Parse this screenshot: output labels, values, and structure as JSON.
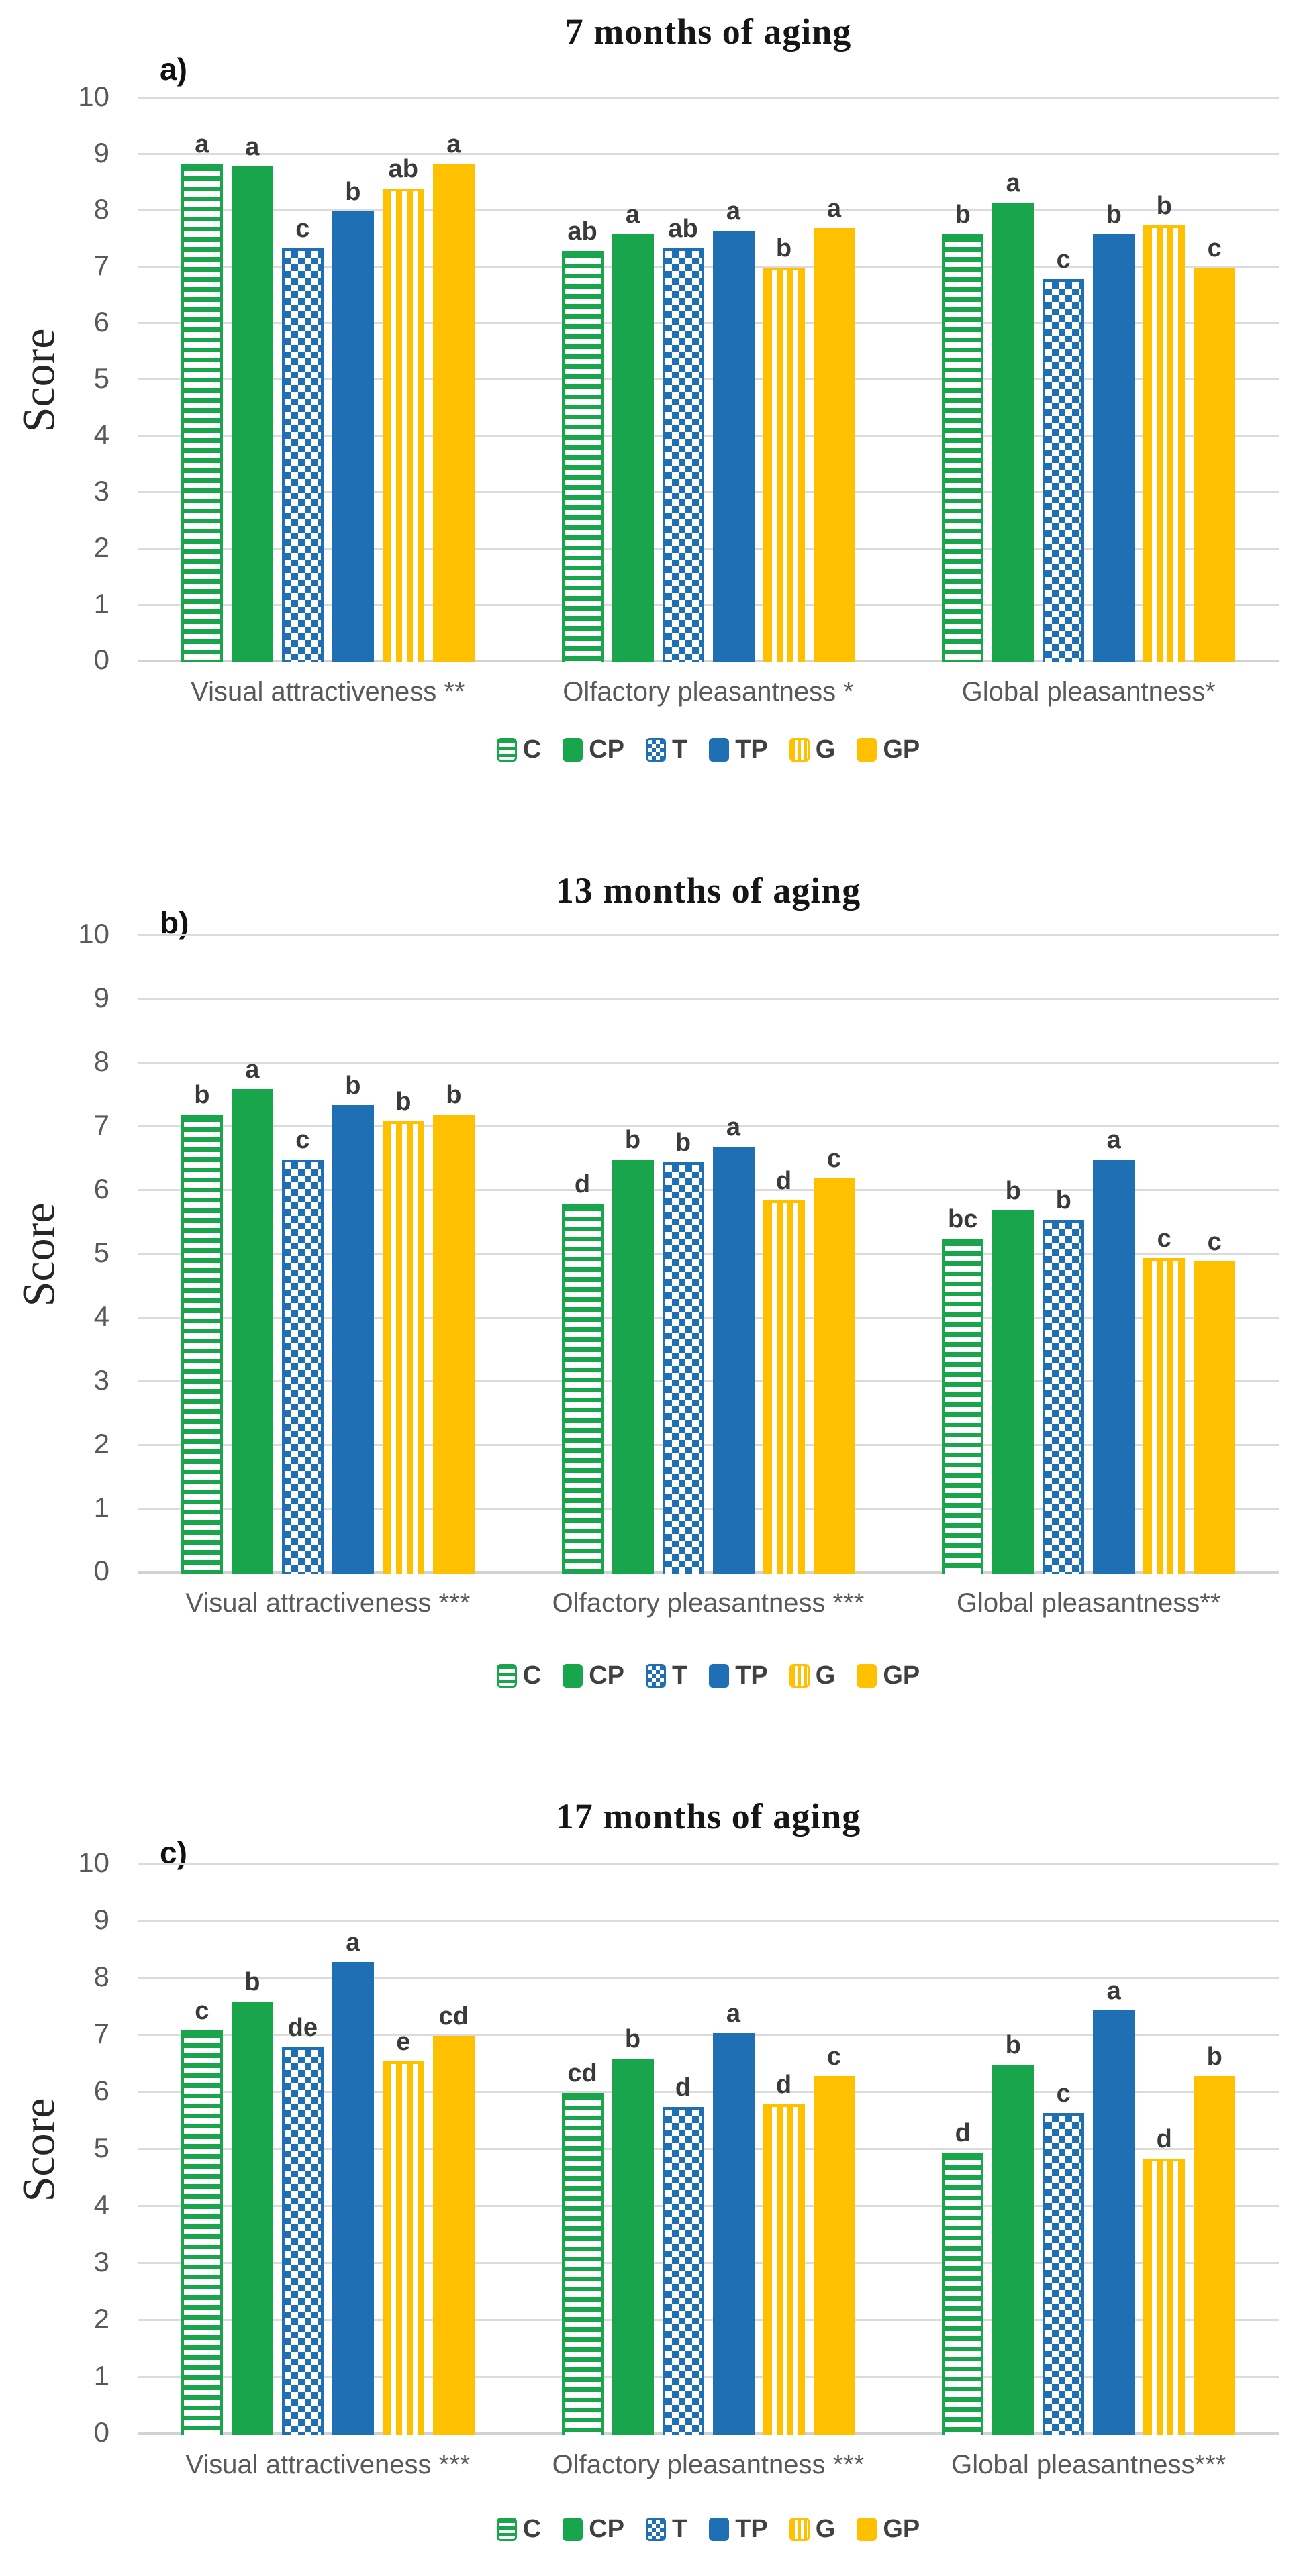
{
  "colors": {
    "green": "#18A54C",
    "blue": "#1F6FB5",
    "yellow": "#FFC000",
    "gridline": "#DBDBDB",
    "tick_text": "#595959",
    "letter_text": "#3A3A3A"
  },
  "y_axis": {
    "label": "Score",
    "ticks": [
      0,
      1,
      2,
      3,
      4,
      5,
      6,
      7,
      8,
      9,
      10
    ],
    "max": 10
  },
  "legend": {
    "items": [
      {
        "key": "C",
        "style": "green-hstripe"
      },
      {
        "key": "CP",
        "style": "green-solid"
      },
      {
        "key": "T",
        "style": "blue-check"
      },
      {
        "key": "TP",
        "style": "blue-solid"
      },
      {
        "key": "G",
        "style": "yellow-vstripe"
      },
      {
        "key": "GP",
        "style": "yellow-solid"
      }
    ]
  },
  "chart_data": [
    {
      "type": "bar",
      "panel": "a)",
      "title": "7 months of aging",
      "ylabel": "Score",
      "ylim": [
        0,
        10
      ],
      "grid": true,
      "legend_position": "bottom",
      "categories": [
        "Visual attractiveness **",
        "Olfactory pleasantness *",
        "Global pleasantness*"
      ],
      "series": [
        {
          "name": "C",
          "style": "green-hstripe",
          "values": [
            8.85,
            7.3,
            7.6
          ],
          "letters": [
            "a",
            "ab",
            "b"
          ]
        },
        {
          "name": "CP",
          "style": "green-solid",
          "values": [
            8.8,
            7.6,
            8.15
          ],
          "letters": [
            "a",
            "a",
            "a"
          ]
        },
        {
          "name": "T",
          "style": "blue-check",
          "values": [
            7.35,
            7.35,
            6.8
          ],
          "letters": [
            "c",
            "ab",
            "c"
          ]
        },
        {
          "name": "TP",
          "style": "blue-solid",
          "values": [
            8.0,
            7.65,
            7.6
          ],
          "letters": [
            "b",
            "a",
            "b"
          ]
        },
        {
          "name": "G",
          "style": "yellow-vstripe",
          "values": [
            8.4,
            7.0,
            7.75
          ],
          "letters": [
            "ab",
            "b",
            "b"
          ]
        },
        {
          "name": "GP",
          "style": "yellow-solid",
          "values": [
            8.85,
            7.7,
            7.0
          ],
          "letters": [
            "a",
            "a",
            "c"
          ]
        }
      ]
    },
    {
      "type": "bar",
      "panel": "b)",
      "title": "13 months of aging",
      "ylabel": "Score",
      "ylim": [
        0,
        10
      ],
      "grid": true,
      "legend_position": "bottom",
      "categories": [
        "Visual attractiveness ***",
        "Olfactory pleasantness ***",
        "Global pleasantness**"
      ],
      "series": [
        {
          "name": "C",
          "style": "green-hstripe",
          "values": [
            7.2,
            5.8,
            5.25
          ],
          "letters": [
            "b",
            "d",
            "bc"
          ]
        },
        {
          "name": "CP",
          "style": "green-solid",
          "values": [
            7.6,
            6.5,
            5.7
          ],
          "letters": [
            "a",
            "b",
            "b"
          ]
        },
        {
          "name": "T",
          "style": "blue-check",
          "values": [
            6.5,
            6.45,
            5.55
          ],
          "letters": [
            "c",
            "b",
            "b"
          ]
        },
        {
          "name": "TP",
          "style": "blue-solid",
          "values": [
            7.35,
            6.7,
            6.5
          ],
          "letters": [
            "b",
            "a",
            "a"
          ]
        },
        {
          "name": "G",
          "style": "yellow-vstripe",
          "values": [
            7.1,
            5.85,
            4.95
          ],
          "letters": [
            "b",
            "d",
            "c"
          ]
        },
        {
          "name": "GP",
          "style": "yellow-solid",
          "values": [
            7.2,
            6.2,
            4.9
          ],
          "letters": [
            "b",
            "c",
            "c"
          ]
        }
      ]
    },
    {
      "type": "bar",
      "panel": "c)",
      "title": "17 months of aging",
      "ylabel": "Score",
      "ylim": [
        0,
        10
      ],
      "grid": true,
      "legend_position": "bottom",
      "categories": [
        "Visual attractiveness ***",
        "Olfactory pleasantness ***",
        "Global pleasantness***"
      ],
      "series": [
        {
          "name": "C",
          "style": "green-hstripe",
          "values": [
            7.1,
            6.0,
            4.95
          ],
          "letters": [
            "c",
            "cd",
            "d"
          ]
        },
        {
          "name": "CP",
          "style": "green-solid",
          "values": [
            7.6,
            6.6,
            6.5
          ],
          "letters": [
            "b",
            "b",
            "b"
          ]
        },
        {
          "name": "T",
          "style": "blue-check",
          "values": [
            6.8,
            5.75,
            5.65
          ],
          "letters": [
            "de",
            "d",
            "c"
          ]
        },
        {
          "name": "TP",
          "style": "blue-solid",
          "values": [
            8.3,
            7.05,
            7.45
          ],
          "letters": [
            "a",
            "a",
            "a"
          ]
        },
        {
          "name": "G",
          "style": "yellow-vstripe",
          "values": [
            6.55,
            5.8,
            4.85
          ],
          "letters": [
            "e",
            "d",
            "d"
          ]
        },
        {
          "name": "GP",
          "style": "yellow-solid",
          "values": [
            7.0,
            6.3,
            6.3
          ],
          "letters": [
            "cd",
            "c",
            "b"
          ]
        }
      ]
    }
  ]
}
